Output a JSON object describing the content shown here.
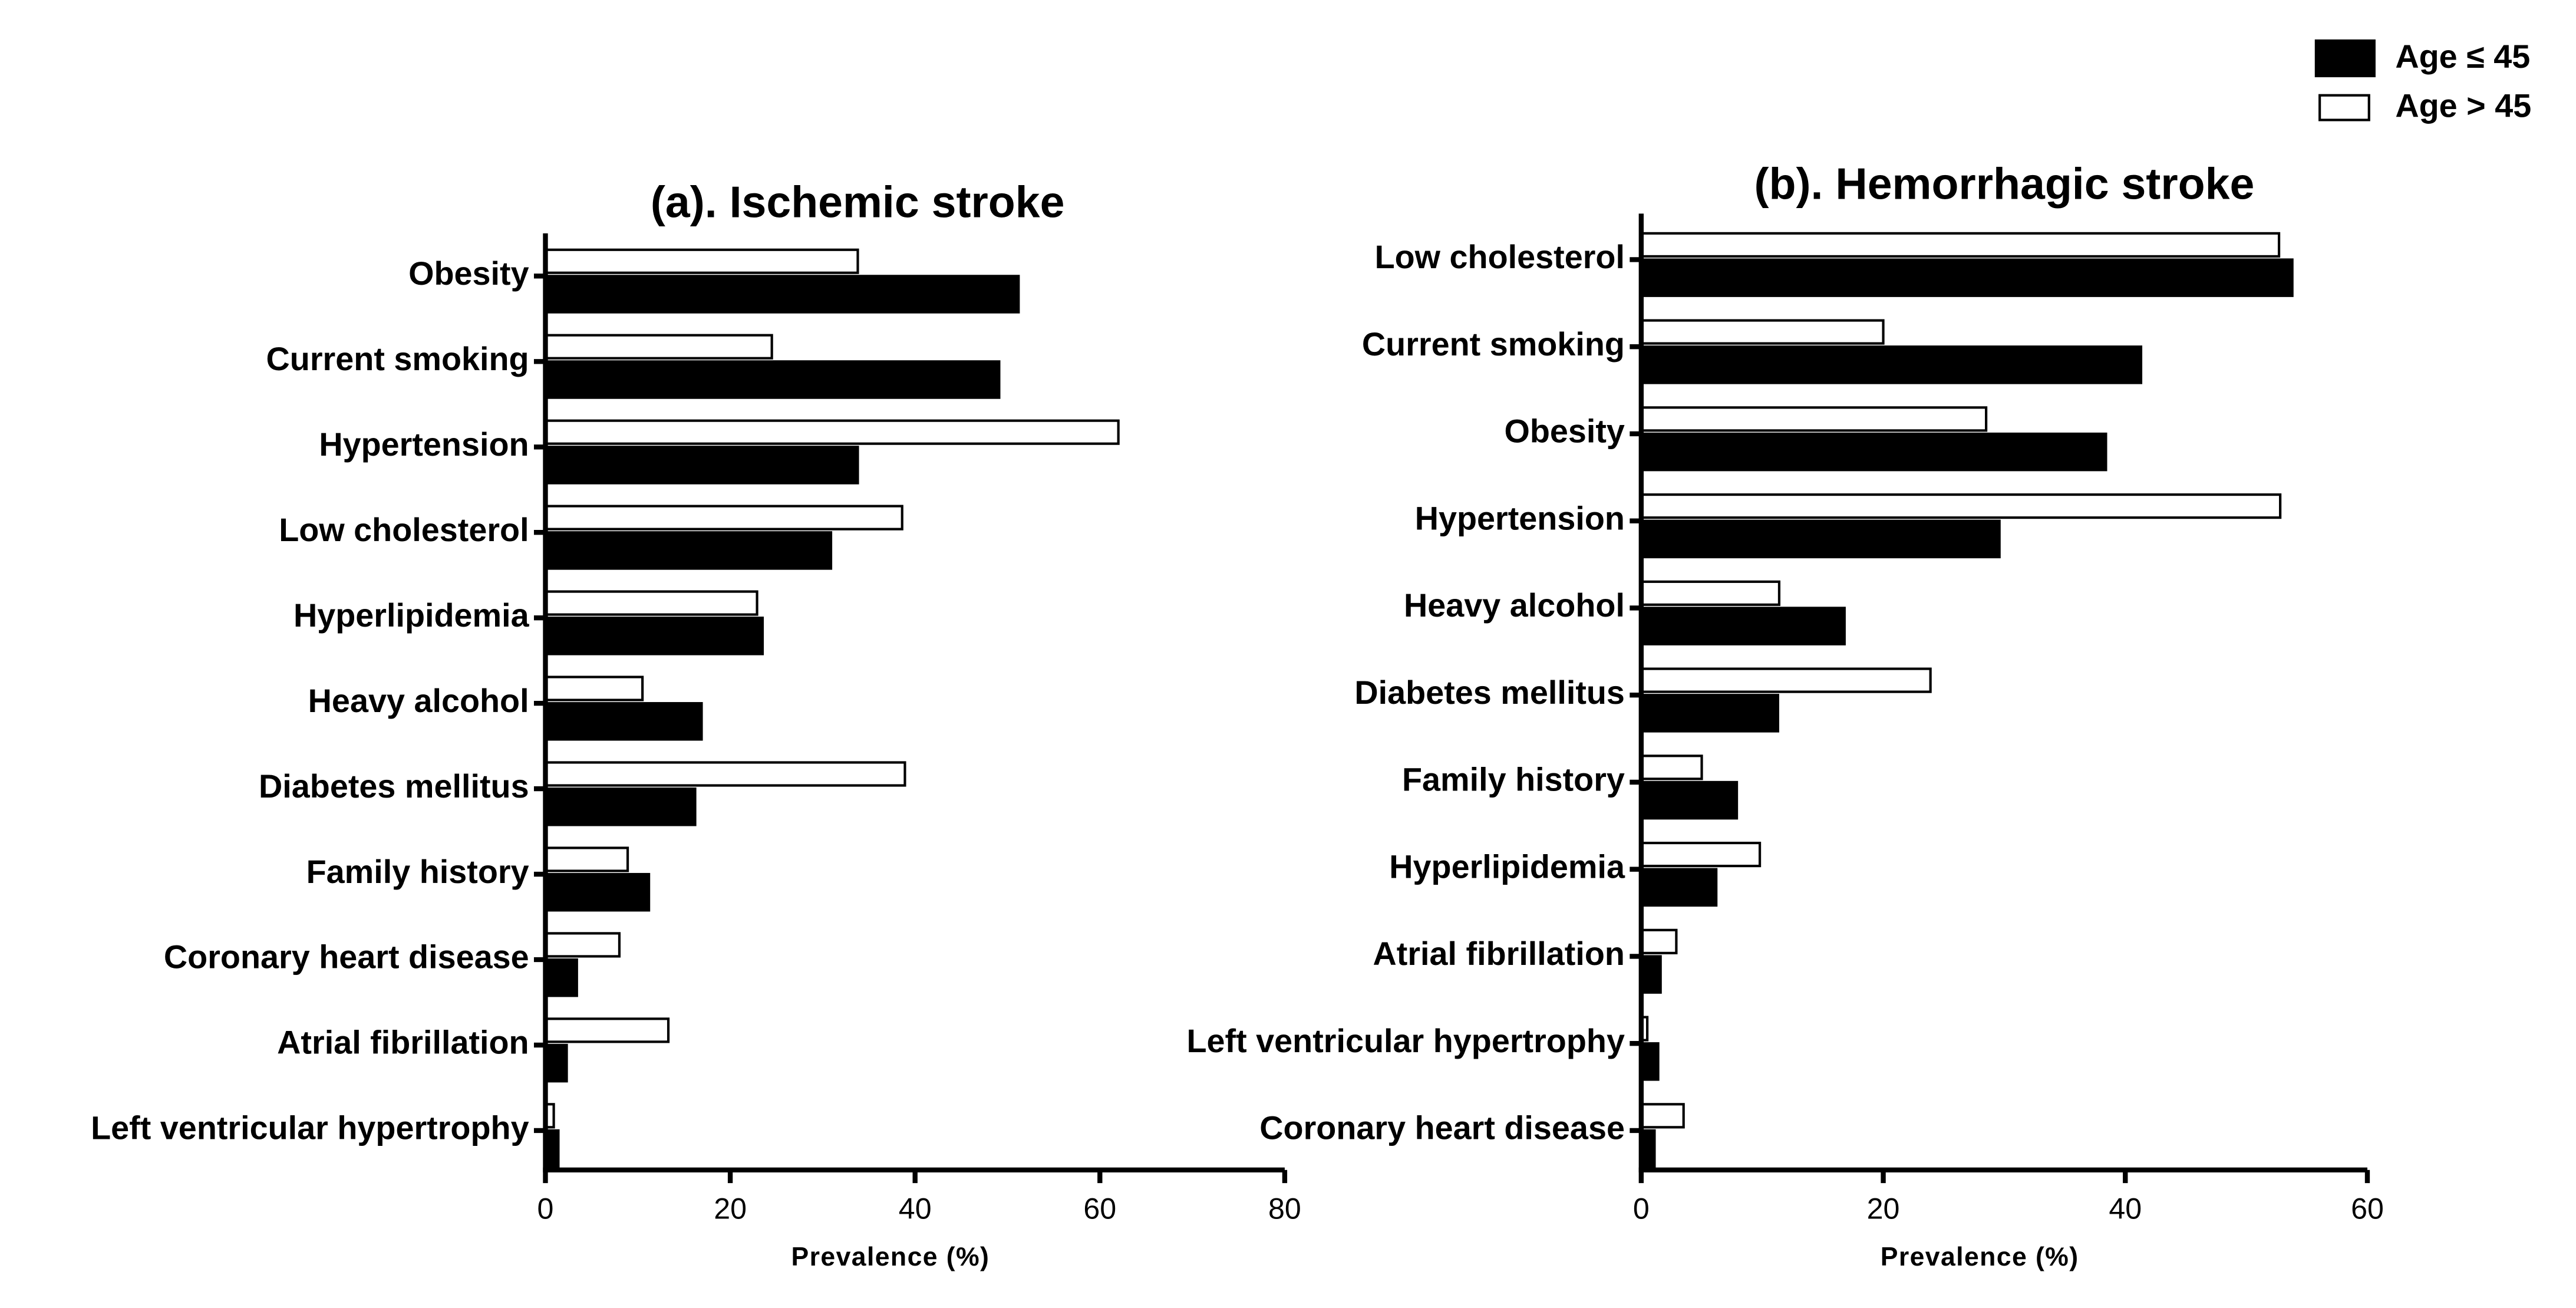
{
  "chart_data": [
    {
      "type": "hbar",
      "title": "(a). Ischemic stroke",
      "xlabel": "Prevalence (%)",
      "categories": [
        "Obesity",
        "Current smoking",
        "Hypertension",
        "Low cholesterol",
        "Hyperlipidemia",
        "Heavy alcohol",
        "Diabetes mellitus",
        "Family history",
        "Coronary heart disease",
        "Atrial fibrillation",
        "Left ventricular hypertrophy"
      ],
      "series": [
        {
          "name": "Age ≤ 45",
          "color": "#000000",
          "values": [
            51.2,
            49.1,
            33.8,
            30.9,
            23.5,
            16.9,
            16.2,
            11.2,
            3.4,
            2.3,
            1.4
          ]
        },
        {
          "name": "Age > 45",
          "color": "#ffffff",
          "values": [
            33.8,
            24.5,
            62.0,
            38.6,
            22.9,
            10.5,
            38.9,
            8.9,
            8.0,
            13.3,
            0.9
          ]
        }
      ],
      "xlim": [
        0,
        80
      ],
      "xticks": [
        0,
        20,
        40,
        60,
        80
      ]
    },
    {
      "type": "hbar",
      "title": "(b). Hemorrhagic stroke",
      "xlabel": "Prevalence (%)",
      "categories": [
        "Low cholesterol",
        "Current smoking",
        "Obesity",
        "Hypertension",
        "Heavy alcohol",
        "Diabetes mellitus",
        "Family history",
        "Hyperlipidemia",
        "Atrial fibrillation",
        "Left ventricular hypertrophy",
        "Coronary heart disease"
      ],
      "series": [
        {
          "name": "Age ≤ 45",
          "color": "#000000",
          "values": [
            53.8,
            41.3,
            38.4,
            29.6,
            16.8,
            11.3,
            7.9,
            6.2,
            1.6,
            1.4,
            1.1
          ]
        },
        {
          "name": "Age > 45",
          "color": "#ffffff",
          "values": [
            52.7,
            20.0,
            28.5,
            52.8,
            11.4,
            23.9,
            5.0,
            9.8,
            2.9,
            0.5,
            3.5
          ]
        }
      ],
      "xlim": [
        0,
        60
      ],
      "xticks": [
        0,
        20,
        40,
        60
      ]
    }
  ]
}
